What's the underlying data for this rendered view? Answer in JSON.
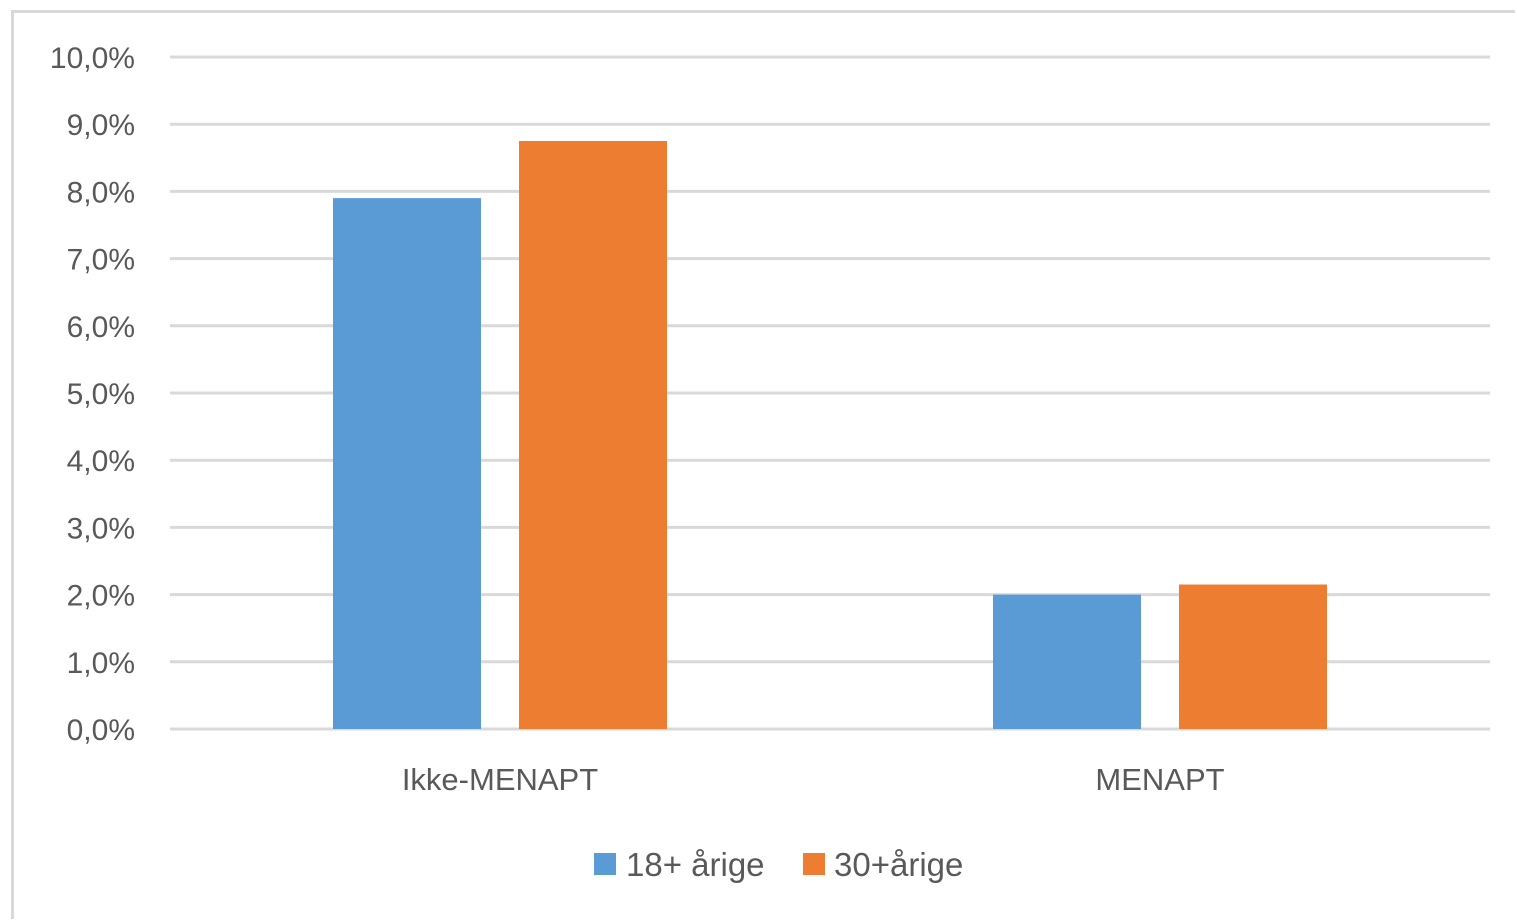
{
  "chart_data": {
    "type": "bar",
    "title": "",
    "xlabel": "",
    "ylabel": "",
    "categories": [
      "Ikke-MENAPT",
      "MENAPT"
    ],
    "series": [
      {
        "name": "18+ årige",
        "color": "#5b9bd5",
        "values": [
          7.9,
          2.0
        ]
      },
      {
        "name": "30+årige",
        "color": "#ed7d31",
        "values": [
          8.75,
          2.15
        ]
      }
    ],
    "ylim": [
      0,
      10
    ],
    "ytick_step": 1,
    "ytick_labels": [
      "0,0%",
      "1,0%",
      "2,0%",
      "3,0%",
      "4,0%",
      "5,0%",
      "6,0%",
      "7,0%",
      "8,0%",
      "9,0%",
      "10,0%"
    ],
    "grid": true,
    "legend_position": "bottom"
  },
  "colors": {
    "gridline": "#d9d9d9",
    "text": "#595959"
  }
}
